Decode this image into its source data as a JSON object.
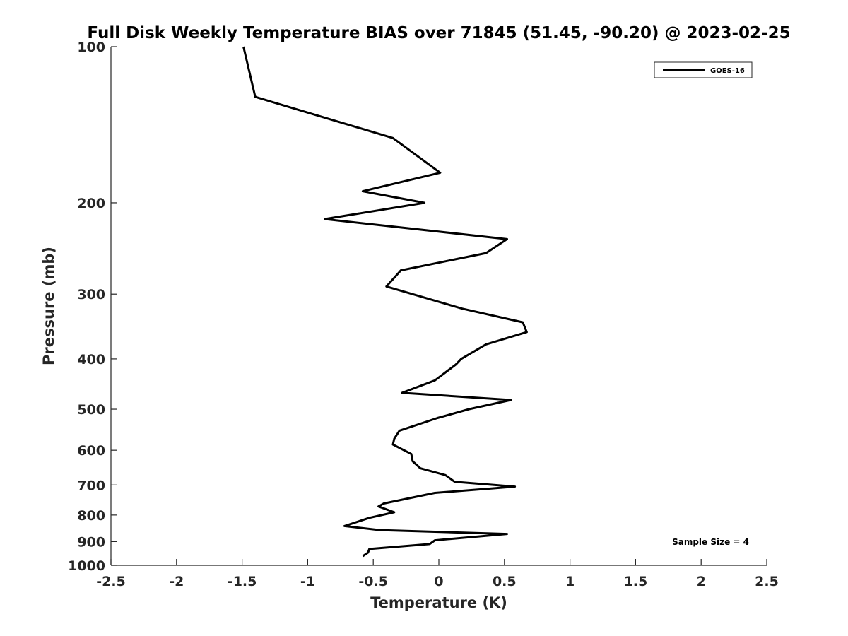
{
  "chart_data": {
    "type": "line",
    "title": "Full Disk Weekly Temperature BIAS over 71845 (51.45, -90.20) @ 2023-02-25",
    "xlabel": "Temperature (K)",
    "ylabel": "Pressure (mb)",
    "xlim": [
      -2.5,
      2.5
    ],
    "ylim": [
      100,
      1000
    ],
    "y_scale": "log",
    "y_reversed": true,
    "x_ticks": [
      -2.5,
      -2,
      -1.5,
      -1,
      -0.5,
      0,
      0.5,
      1,
      1.5,
      2,
      2.5
    ],
    "x_tick_labels": [
      "-2.5",
      "-2",
      "-1.5",
      "-1",
      "-0.5",
      "0",
      "0.5",
      "1",
      "1.5",
      "2",
      "2.5"
    ],
    "y_ticks": [
      100,
      200,
      300,
      400,
      500,
      600,
      700,
      800,
      900,
      1000
    ],
    "y_tick_labels": [
      "100",
      "200",
      "300",
      "400",
      "500",
      "600",
      "700",
      "800",
      "900",
      "1000"
    ],
    "grid": false,
    "legend": "top-right",
    "annotation": "Sample Size = 4",
    "series": [
      {
        "name": "GOES-16",
        "color": "#000000",
        "points": [
          [
            -1.49,
            100
          ],
          [
            -1.4,
            125
          ],
          [
            -0.35,
            150
          ],
          [
            0.01,
            175
          ],
          [
            -0.58,
            190
          ],
          [
            -0.11,
            200
          ],
          [
            -0.87,
            215
          ],
          [
            0.52,
            235
          ],
          [
            0.36,
            250
          ],
          [
            -0.29,
            270
          ],
          [
            -0.4,
            290
          ],
          [
            0.18,
            320
          ],
          [
            0.64,
            340
          ],
          [
            0.67,
            355
          ],
          [
            0.36,
            375
          ],
          [
            0.17,
            400
          ],
          [
            0.13,
            410
          ],
          [
            -0.03,
            440
          ],
          [
            -0.28,
            465
          ],
          [
            0.55,
            480
          ],
          [
            0.23,
            500
          ],
          [
            -0.01,
            520
          ],
          [
            -0.3,
            550
          ],
          [
            -0.34,
            570
          ],
          [
            -0.35,
            585
          ],
          [
            -0.21,
            610
          ],
          [
            -0.2,
            630
          ],
          [
            -0.14,
            650
          ],
          [
            0.05,
            670
          ],
          [
            0.12,
            690
          ],
          [
            0.58,
            705
          ],
          [
            -0.03,
            725
          ],
          [
            -0.42,
            760
          ],
          [
            -0.46,
            770
          ],
          [
            -0.34,
            790
          ],
          [
            -0.53,
            810
          ],
          [
            -0.72,
            840
          ],
          [
            -0.45,
            855
          ],
          [
            0.52,
            870
          ],
          [
            -0.03,
            895
          ],
          [
            -0.07,
            910
          ],
          [
            -0.53,
            930
          ],
          [
            -0.54,
            945
          ],
          [
            -0.58,
            960
          ]
        ]
      }
    ]
  }
}
